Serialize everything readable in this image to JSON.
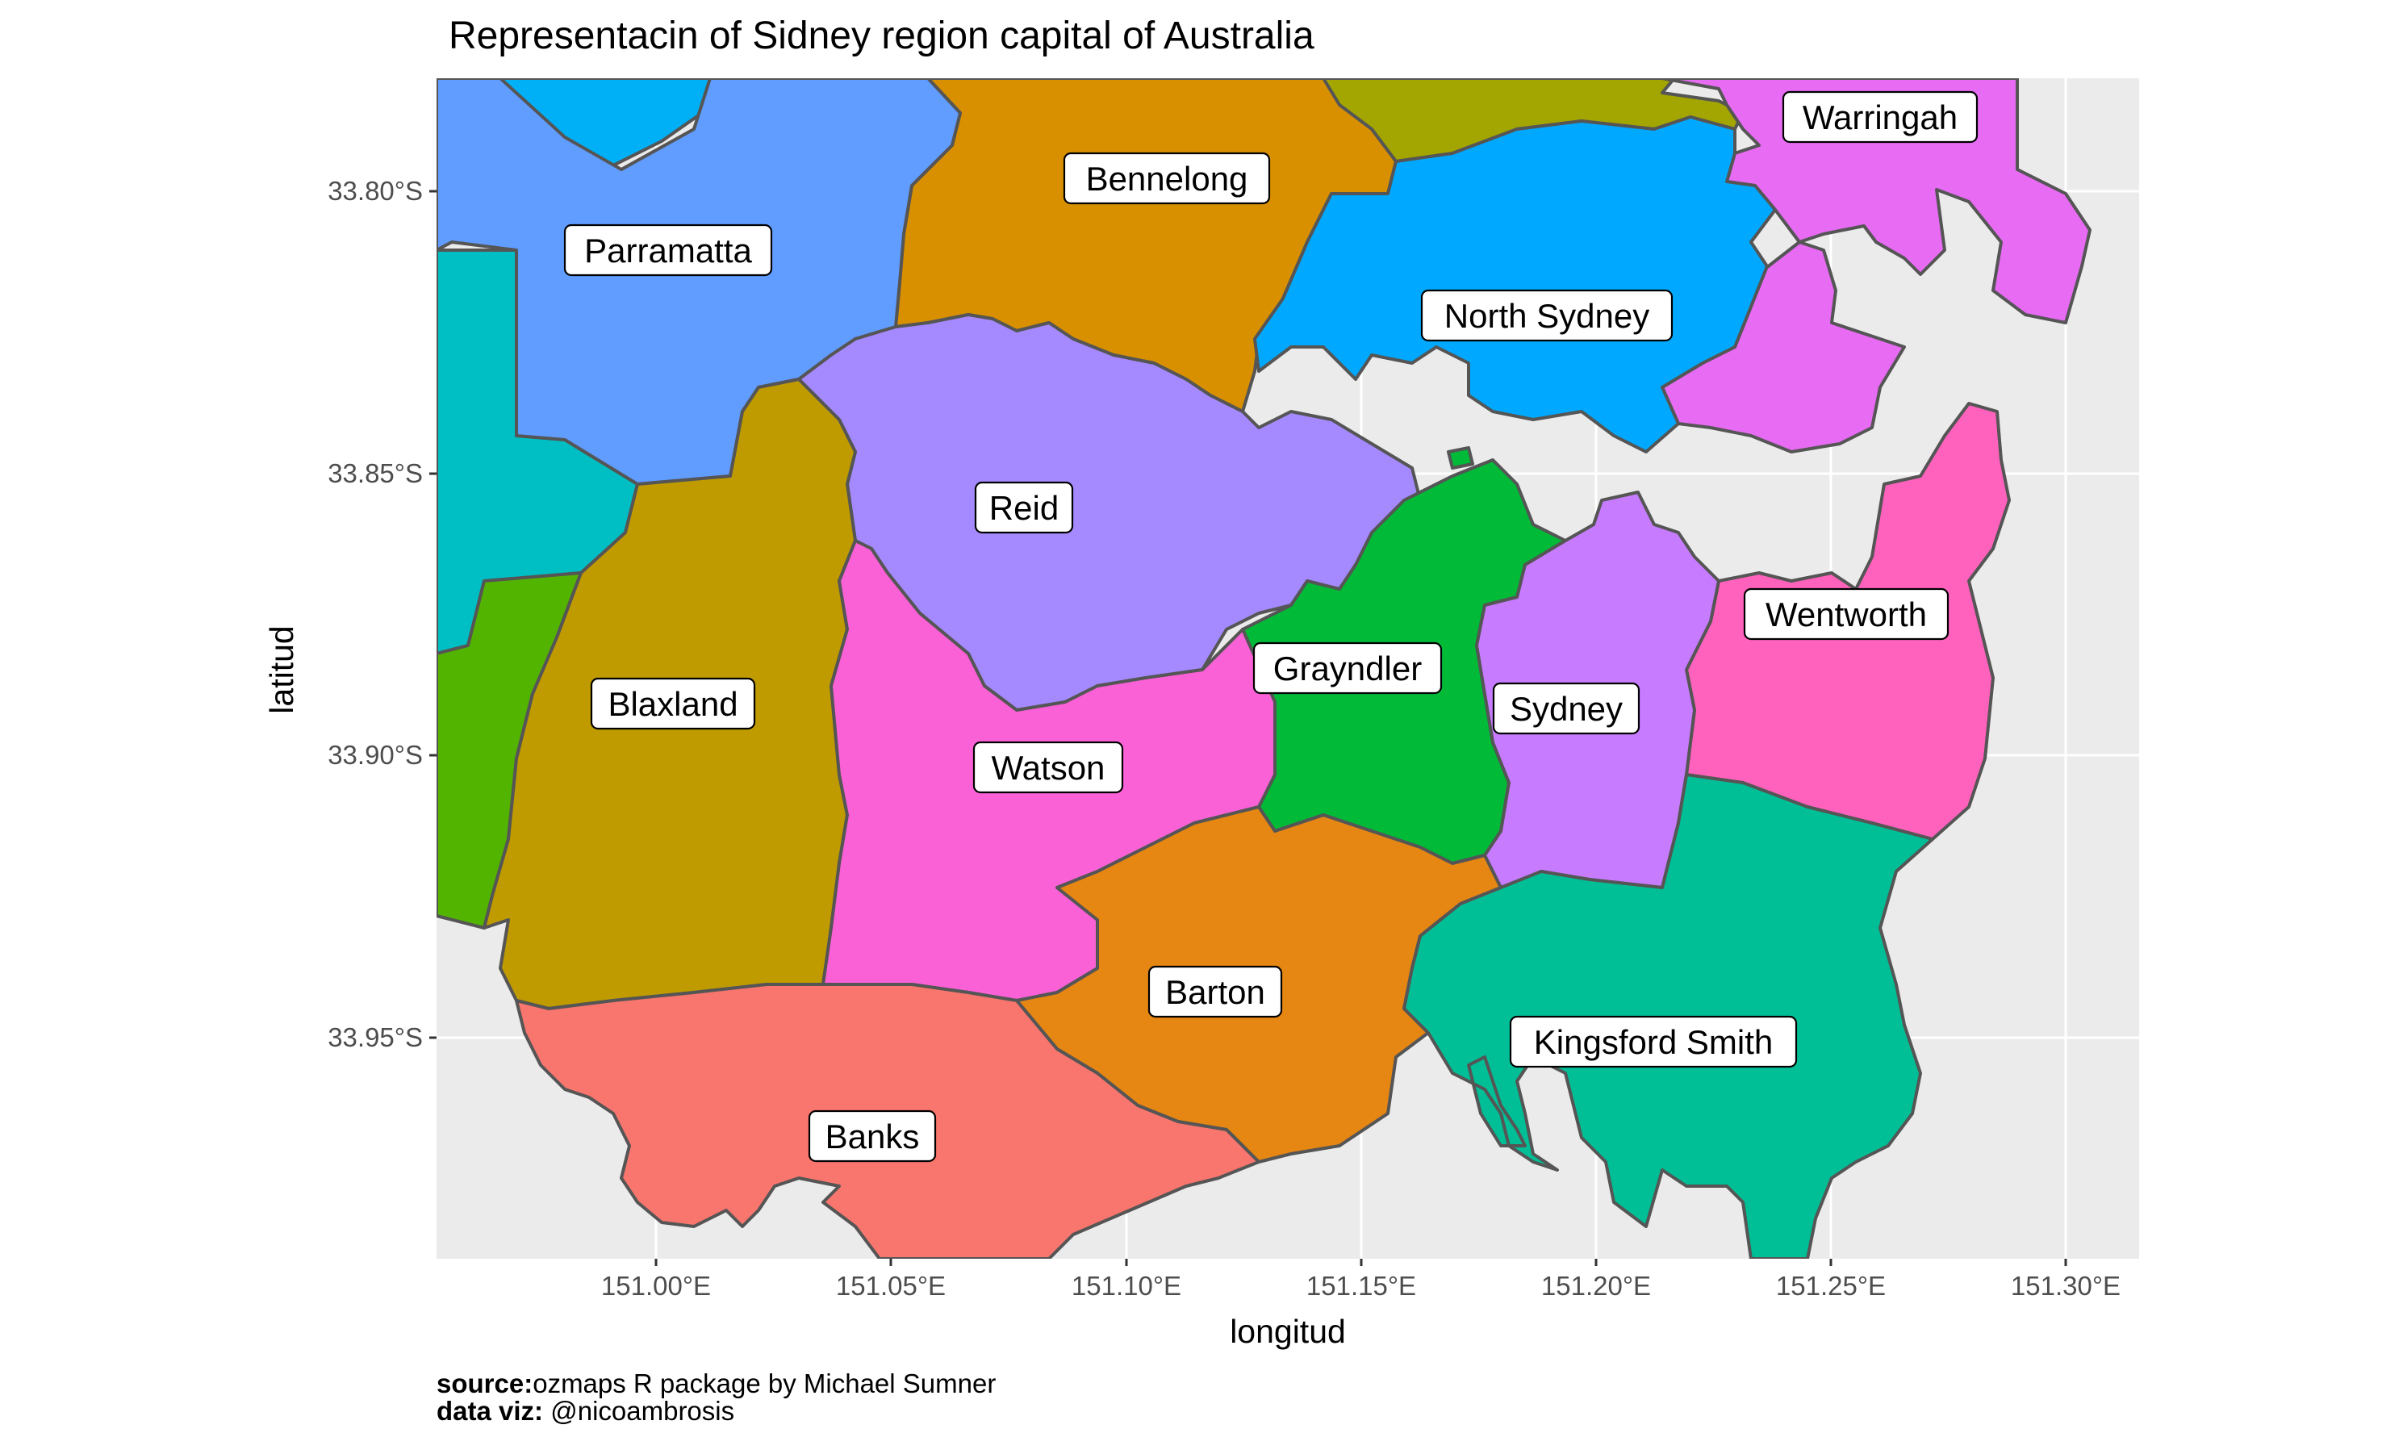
{
  "title": "Representacin of Sidney region capital of Australia",
  "axes": {
    "x": {
      "title": "longitud",
      "ticks": [
        "151.00°E",
        "151.05°E",
        "151.10°E",
        "151.15°E",
        "151.20°E",
        "151.25°E",
        "151.30°E"
      ]
    },
    "y": {
      "title": "latitud",
      "ticks": [
        "33.80°S",
        "33.85°S",
        "33.90°S",
        "33.95°S"
      ]
    }
  },
  "regions": [
    {
      "name": "Warringah",
      "color": "#E76BF3"
    },
    {
      "name": "Bennelong",
      "color": "#D89000"
    },
    {
      "name": "Parramatta",
      "color": "#619CFF"
    },
    {
      "name": "North Sydney",
      "color": "#00A9FF"
    },
    {
      "name": "Reid",
      "color": "#A58AFF"
    },
    {
      "name": "Wentworth",
      "color": "#FF62BC"
    },
    {
      "name": "Grayndler",
      "color": "#00BA38"
    },
    {
      "name": "Sydney",
      "color": "#C77CFF"
    },
    {
      "name": "Blaxland",
      "color": "#C09B00"
    },
    {
      "name": "Watson",
      "color": "#FB61D7"
    },
    {
      "name": "Barton",
      "color": "#E68613"
    },
    {
      "name": "Kingsford Smith",
      "color": "#00BF96"
    },
    {
      "name": "Banks",
      "color": "#F8766D"
    }
  ],
  "unlabeled_region_colors": [
    "#00B0F6",
    "#A3A500",
    "#00BFC4",
    "#53B400",
    "#00C08B"
  ],
  "caption": {
    "line1_key": "source:",
    "line1_value": "ozmaps R package by Michael Sumner",
    "line2_key": "data viz:",
    "line2_value": " @nicoambrosis"
  },
  "panel_background": "#EBEBEB",
  "grid_color": "#FFFFFF"
}
